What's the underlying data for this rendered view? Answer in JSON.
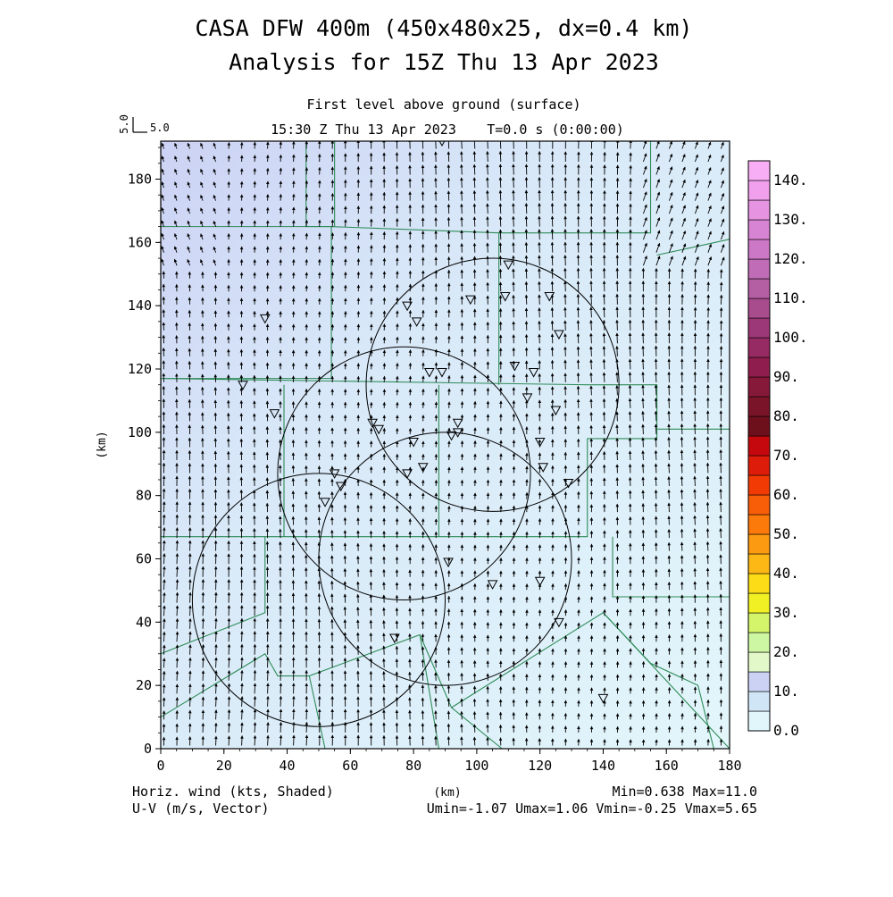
{
  "header": {
    "title_line1": "CASA DFW 400m (450x480x25, dx=0.4 km)",
    "title_line2": "Analysis for 15Z Thu 13 Apr 2023",
    "subtitle": "First level above ground (surface)",
    "valid_time": "15:30 Z Thu 13 Apr 2023",
    "time_step": "T=0.0 s (0:00:00)"
  },
  "vector_key": {
    "label": "5.0",
    "side_label": "5.0"
  },
  "footer": {
    "left_line1": "Horiz. wind (kts, Shaded)",
    "left_line2": "U-V (m/s, Vector)",
    "center": "(km)",
    "right_line1": "Min=0.638 Max=11.0",
    "right_line2": "Umin=-1.07 Umax=1.06 Vmin=-0.25 Vmax=5.65"
  },
  "colors": {
    "map_lines": "#2e8b57",
    "radar_circles": "#000000",
    "shade_low": "#e0f6fb",
    "shade_high": "#ccd2f4"
  },
  "chart_data": {
    "type": "heatmap",
    "description_fields": [
      "shaded horizontal wind speed (kts)",
      "wind vectors (m/s)"
    ],
    "xlabel": "(km)",
    "ylabel": "(km)",
    "xlim": [
      0,
      180
    ],
    "ylim": [
      0,
      192
    ],
    "xticks": [
      "0",
      "20",
      "40",
      "60",
      "80",
      "100",
      "120",
      "140",
      "160",
      "180"
    ],
    "yticks": [
      "0",
      "20",
      "40",
      "60",
      "80",
      "100",
      "120",
      "140",
      "160",
      "180"
    ],
    "colorbar": {
      "labels": [
        "0.0",
        "10.",
        "20.",
        "30.",
        "40.",
        "50.",
        "60.",
        "70.",
        "80.",
        "90.",
        "100.",
        "110.",
        "120.",
        "130.",
        "140."
      ],
      "bins": [
        {
          "from": 0,
          "to": 5,
          "color": "#e0f6fb"
        },
        {
          "from": 5,
          "to": 10,
          "color": "#d0e6f7"
        },
        {
          "from": 10,
          "to": 15,
          "color": "#ccd2f4"
        },
        {
          "from": 15,
          "to": 20,
          "color": "#e2f8c8"
        },
        {
          "from": 20,
          "to": 25,
          "color": "#cdf7a2"
        },
        {
          "from": 25,
          "to": 30,
          "color": "#d4f56a"
        },
        {
          "from": 30,
          "to": 35,
          "color": "#f0f024"
        },
        {
          "from": 35,
          "to": 40,
          "color": "#fcdc16"
        },
        {
          "from": 40,
          "to": 45,
          "color": "#fdb816"
        },
        {
          "from": 45,
          "to": 50,
          "color": "#fc9a12"
        },
        {
          "from": 50,
          "to": 55,
          "color": "#fc7a0a"
        },
        {
          "from": 55,
          "to": 60,
          "color": "#f85d07"
        },
        {
          "from": 60,
          "to": 65,
          "color": "#f23a05"
        },
        {
          "from": 65,
          "to": 70,
          "color": "#de1c0a"
        },
        {
          "from": 70,
          "to": 75,
          "color": "#c5080e"
        },
        {
          "from": 75,
          "to": 80,
          "color": "#6e0f1c"
        },
        {
          "from": 80,
          "to": 85,
          "color": "#7a1428"
        },
        {
          "from": 85,
          "to": 90,
          "color": "#86183a"
        },
        {
          "from": 90,
          "to": 95,
          "color": "#8f1e4e"
        },
        {
          "from": 95,
          "to": 100,
          "color": "#962a62"
        },
        {
          "from": 100,
          "to": 105,
          "color": "#9c3878"
        },
        {
          "from": 105,
          "to": 110,
          "color": "#a84c8e"
        },
        {
          "from": 110,
          "to": 115,
          "color": "#b45ea4"
        },
        {
          "from": 115,
          "to": 120,
          "color": "#c06cb6"
        },
        {
          "from": 120,
          "to": 125,
          "color": "#cc78c6"
        },
        {
          "from": 125,
          "to": 130,
          "color": "#d884d4"
        },
        {
          "from": 130,
          "to": 135,
          "color": "#e694e2"
        },
        {
          "from": 135,
          "to": 140,
          "color": "#f0a0ec"
        },
        {
          "from": 140,
          "to": 145,
          "color": "#f8aef4"
        }
      ]
    },
    "wind_field": {
      "u_range_ms": [
        -1.07,
        1.06
      ],
      "v_range_ms": [
        -0.25,
        5.65
      ],
      "speed_range_kts": [
        0.638,
        11.0
      ],
      "grid_spacing_km": 4.1,
      "dominant_direction": "from south (vectors pointing north)"
    },
    "radar_circles_km": [
      {
        "cx": 105,
        "cy": 115,
        "r": 40
      },
      {
        "cx": 77,
        "cy": 87,
        "r": 40
      },
      {
        "cx": 90,
        "cy": 60,
        "r": 40
      },
      {
        "cx": 50,
        "cy": 47,
        "r": 40
      }
    ],
    "stations_km": [
      [
        89,
        192
      ],
      [
        110,
        153
      ],
      [
        123,
        143
      ],
      [
        109,
        143
      ],
      [
        98,
        142
      ],
      [
        78,
        140
      ],
      [
        81,
        135
      ],
      [
        33,
        136
      ],
      [
        126,
        131
      ],
      [
        112,
        121
      ],
      [
        85,
        119
      ],
      [
        89,
        119
      ],
      [
        118,
        119
      ],
      [
        26,
        115
      ],
      [
        116,
        111
      ],
      [
        125,
        107
      ],
      [
        36,
        106
      ],
      [
        67,
        103
      ],
      [
        69,
        101
      ],
      [
        94,
        103
      ],
      [
        80,
        97
      ],
      [
        92,
        99
      ],
      [
        94,
        100
      ],
      [
        120,
        97
      ],
      [
        55,
        87
      ],
      [
        121,
        89
      ],
      [
        78,
        87
      ],
      [
        83,
        89
      ],
      [
        57,
        83
      ],
      [
        129,
        84
      ],
      [
        52,
        78
      ],
      [
        91,
        59
      ],
      [
        120,
        53
      ],
      [
        105,
        52
      ],
      [
        126,
        40
      ],
      [
        74,
        35
      ],
      [
        140,
        16
      ]
    ],
    "map_lines_km": [
      [
        [
          46,
          192
        ],
        [
          46,
          165
        ],
        [
          55,
          165
        ],
        [
          55,
          192
        ]
      ],
      [
        [
          0,
          165
        ],
        [
          54,
          165
        ],
        [
          54,
          117
        ],
        [
          0,
          117
        ]
      ],
      [
        [
          54,
          165
        ],
        [
          107,
          163
        ],
        [
          155,
          163
        ],
        [
          155,
          192
        ]
      ],
      [
        [
          0,
          117
        ],
        [
          135,
          115
        ],
        [
          157,
          115
        ],
        [
          157,
          98
        ],
        [
          135,
          98
        ],
        [
          135,
          67
        ],
        [
          0,
          67
        ]
      ],
      [
        [
          39,
          115
        ],
        [
          39,
          67
        ]
      ],
      [
        [
          88,
          115
        ],
        [
          88,
          67
        ]
      ],
      [
        [
          107,
          163
        ],
        [
          107,
          115
        ]
      ],
      [
        [
          157,
          156
        ],
        [
          180,
          161
        ]
      ],
      [
        [
          157,
          101
        ],
        [
          180,
          101
        ],
        [
          180,
          48
        ],
        [
          143,
          48
        ],
        [
          143,
          67
        ]
      ],
      [
        [
          0,
          67
        ],
        [
          0,
          192
        ]
      ],
      [
        [
          0,
          30
        ],
        [
          33,
          43
        ],
        [
          33,
          67
        ]
      ],
      [
        [
          0,
          10
        ],
        [
          33,
          30
        ],
        [
          37,
          23
        ],
        [
          47,
          23
        ],
        [
          82,
          36
        ],
        [
          92,
          13
        ],
        [
          140,
          43
        ],
        [
          180,
          0
        ]
      ],
      [
        [
          47,
          23
        ],
        [
          52,
          0
        ]
      ],
      [
        [
          82,
          36
        ],
        [
          88,
          0
        ]
      ],
      [
        [
          92,
          13
        ],
        [
          108,
          0
        ]
      ],
      [
        [
          140,
          43
        ],
        [
          155,
          27
        ],
        [
          170,
          20
        ],
        [
          175,
          0
        ]
      ]
    ]
  }
}
